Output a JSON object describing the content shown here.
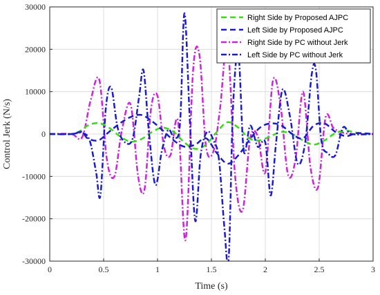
{
  "chart_data": {
    "type": "line",
    "xlabel": "Time (s)",
    "ylabel": "Control Jerk (N/s)",
    "xlim": [
      0,
      3
    ],
    "ylim": [
      -30000,
      30000
    ],
    "x_ticks": [
      0,
      0.5,
      1,
      1.5,
      2,
      2.5,
      3
    ],
    "x_tick_labels": [
      "0",
      "0.5",
      "1",
      "1.5",
      "2",
      "2.5",
      "3"
    ],
    "y_ticks": [
      -30000,
      -20000,
      -10000,
      0,
      10000,
      20000,
      30000
    ],
    "y_tick_labels": [
      "-30000",
      "-20000",
      "-10000",
      "0",
      "10000",
      "20000",
      "30000"
    ],
    "grid": true,
    "legend_position": "top-right",
    "series": [
      {
        "name": "Right Side by Proposed AJPC",
        "color": "#33dd11",
        "dash": "dashed",
        "x": [
          0,
          0.2,
          0.3,
          0.35,
          0.45,
          0.55,
          0.65,
          0.75,
          0.85,
          0.95,
          1.05,
          1.15,
          1.25,
          1.35,
          1.45,
          1.55,
          1.65,
          1.75,
          1.85,
          1.95,
          2.05,
          2.15,
          2.25,
          2.35,
          2.45,
          2.55,
          2.65,
          2.75,
          2.85,
          3.0
        ],
        "y": [
          0,
          0,
          1000,
          2000,
          2600,
          1500,
          -500,
          -1800,
          -1200,
          500,
          1500,
          500,
          -2000,
          -3500,
          -2500,
          500,
          2800,
          1500,
          -1000,
          -1500,
          -500,
          500,
          0,
          -1500,
          -2500,
          -1500,
          200,
          800,
          300,
          0
        ]
      },
      {
        "name": "Left Side by Proposed AJPC",
        "color": "#1a1ad0",
        "dash": "dashed",
        "x": [
          0,
          0.2,
          0.3,
          0.35,
          0.45,
          0.55,
          0.65,
          0.75,
          0.85,
          0.95,
          1.05,
          1.15,
          1.25,
          1.35,
          1.45,
          1.55,
          1.65,
          1.75,
          1.85,
          1.95,
          2.05,
          2.15,
          2.25,
          2.35,
          2.45,
          2.55,
          2.65,
          2.75,
          2.85,
          3.0
        ],
        "y": [
          0,
          0,
          500,
          -1000,
          -1500,
          500,
          2500,
          4000,
          4500,
          3000,
          800,
          -1500,
          -3000,
          -2500,
          -1000,
          -4500,
          -7000,
          -5000,
          -1500,
          1500,
          2500,
          2000,
          0,
          -1000,
          2000,
          2500,
          500,
          -500,
          200,
          0
        ]
      },
      {
        "name": "Right Side by PC without Jerk",
        "color": "#cc22dd",
        "dash": "dashdot",
        "x": [
          0,
          0.2,
          0.3,
          0.38,
          0.46,
          0.53,
          0.6,
          0.67,
          0.75,
          0.82,
          0.88,
          0.94,
          1.0,
          1.06,
          1.12,
          1.19,
          1.26,
          1.33,
          1.39,
          1.45,
          1.52,
          1.58,
          1.65,
          1.72,
          1.79,
          1.86,
          1.93,
          2.0,
          2.07,
          2.14,
          2.21,
          2.28,
          2.35,
          2.42,
          2.49,
          2.56,
          2.63,
          2.7,
          2.8,
          3.0
        ],
        "y": [
          0,
          0,
          -800,
          8000,
          12800,
          -6000,
          -10000,
          1000,
          7000,
          -10000,
          -13000,
          6000,
          9000,
          -3000,
          -5000,
          3000,
          -25000,
          15000,
          18500,
          -3000,
          -4000,
          6000,
          21000,
          -10000,
          -18000,
          -1000,
          -500,
          -9000,
          12500,
          7000,
          -9500,
          -6000,
          10000,
          -8000,
          -12500,
          4000,
          1500,
          500,
          0,
          0
        ]
      },
      {
        "name": "Left Side by PC without Jerk",
        "color": "#1a1ad0",
        "dash": "dashdot",
        "x": [
          0,
          0.2,
          0.3,
          0.37,
          0.43,
          0.47,
          0.52,
          0.57,
          0.63,
          0.7,
          0.77,
          0.83,
          0.87,
          0.92,
          0.98,
          1.04,
          1.1,
          1.16,
          1.21,
          1.25,
          1.3,
          1.35,
          1.4,
          1.46,
          1.52,
          1.57,
          1.62,
          1.66,
          1.7,
          1.75,
          1.8,
          1.86,
          1.93,
          2.0,
          2.05,
          2.1,
          2.16,
          2.23,
          2.3,
          2.37,
          2.43,
          2.47,
          2.52,
          2.58,
          2.65,
          2.72,
          2.8,
          3.0
        ],
        "y": [
          0,
          0,
          300,
          -1500,
          -9000,
          -14500,
          6000,
          11000,
          1500,
          -2000,
          -1000,
          9000,
          15000,
          500,
          -12000,
          -4000,
          1000,
          -1000,
          3000,
          28500,
          3000,
          -20500,
          -5000,
          500,
          -1500,
          -6000,
          -22000,
          -29500,
          6000,
          19000,
          -4000,
          2000,
          -3000,
          -2000,
          -14500,
          -2000,
          10500,
          4000,
          -7000,
          -2000,
          14000,
          15000,
          -1500,
          -4500,
          -5000,
          1500,
          0,
          0
        ]
      }
    ]
  }
}
